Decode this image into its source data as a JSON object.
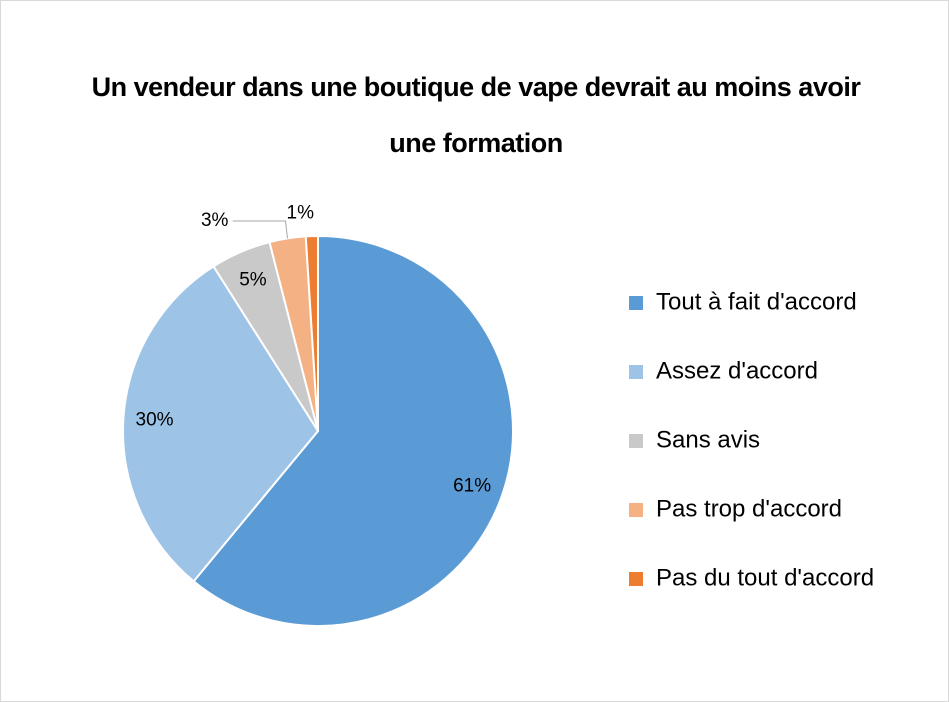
{
  "chart_data": {
    "type": "pie",
    "title": "Un vendeur dans une boutique de vape devrait au moins avoir une formation",
    "categories": [
      "Tout à fait d'accord",
      "Assez d'accord",
      "Sans avis",
      "Pas trop d'accord",
      "Pas du tout d'accord"
    ],
    "values": [
      61,
      30,
      5,
      3,
      1
    ],
    "value_labels": [
      "61%",
      "30%",
      "5%",
      "3%",
      "1%"
    ],
    "colors": [
      "#5b9bd5",
      "#9dc3e6",
      "#c9c9c9",
      "#f4b183",
      "#ed7d31"
    ],
    "legend": "right"
  }
}
